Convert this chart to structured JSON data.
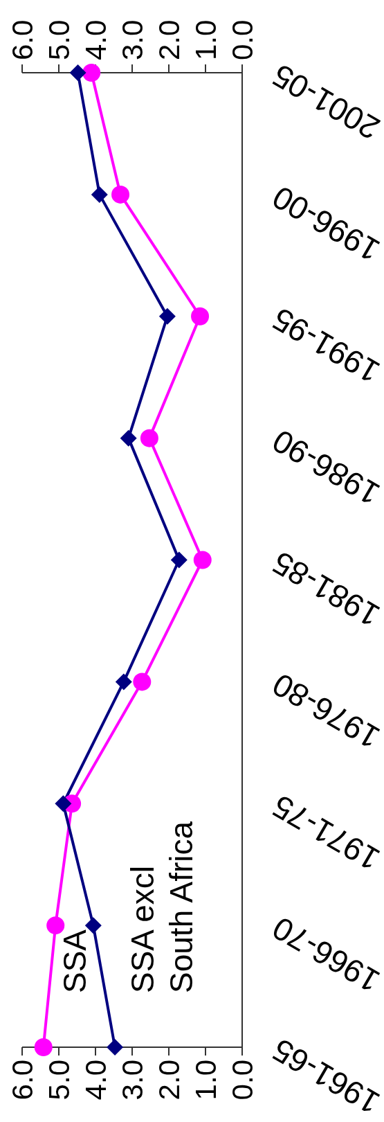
{
  "chart_data": {
    "type": "line",
    "orientation": "horizontal",
    "categories": [
      "2001-05",
      "1996-00",
      "1991-95",
      "1986-90",
      "1981-85",
      "1976-80",
      "1971-75",
      "1966-70",
      "1961-65"
    ],
    "series": [
      {
        "name": "SSA",
        "color": "#ff00ff",
        "marker": "circle",
        "values": [
          4.11,
          3.32,
          1.15,
          2.53,
          1.08,
          2.73,
          4.64,
          5.09,
          5.42
        ]
      },
      {
        "name": "SSA excl South Africa",
        "color": "#000080",
        "marker": "diamond",
        "values": [
          4.48,
          3.89,
          2.04,
          3.1,
          1.72,
          3.23,
          4.88,
          4.06,
          3.47
        ]
      }
    ],
    "xlim": [
      6,
      0
    ],
    "xticks": [
      {
        "value": 0,
        "label": "0.0"
      },
      {
        "value": 1,
        "label": "1.0"
      },
      {
        "value": 2,
        "label": "2.0"
      },
      {
        "value": 3,
        "label": "3.0"
      },
      {
        "value": 4,
        "label": "4.0"
      },
      {
        "value": 5,
        "label": "5.0"
      },
      {
        "value": 6,
        "label": "6.0"
      }
    ],
    "x2lim": [
      6,
      0
    ],
    "x2ticks": [
      {
        "value": 0,
        "label": "0.0"
      },
      {
        "value": 1,
        "label": "1.0"
      },
      {
        "value": 2,
        "label": "2.0"
      },
      {
        "value": 3,
        "label": "3.0"
      },
      {
        "value": 4,
        "label": "4.0"
      },
      {
        "value": 5,
        "label": "5.0"
      },
      {
        "value": 6,
        "label": "6.0"
      }
    ],
    "grid": false,
    "legend": "bottom left"
  }
}
